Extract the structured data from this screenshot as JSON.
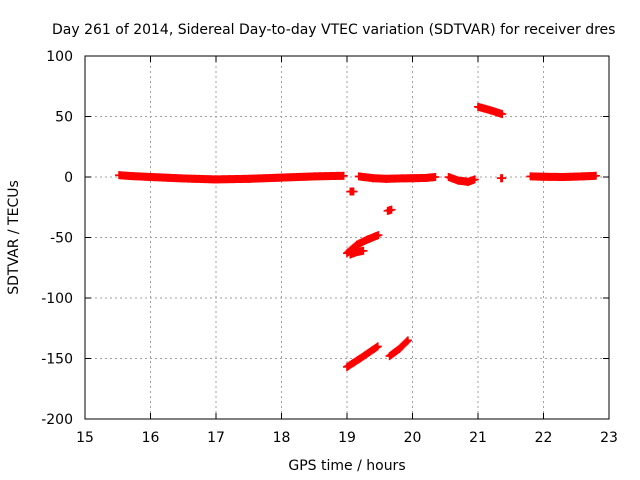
{
  "chart_data": {
    "type": "scatter",
    "title": "Day 261 of 2014, Sidereal Day-to-day VTEC variation (SDTVAR) for receiver dres",
    "xlabel": "GPS time / hours",
    "ylabel": "SDTVAR / TECUs",
    "xlim": [
      15,
      23
    ],
    "ylim": [
      -200,
      100
    ],
    "xticks": [
      15,
      16,
      17,
      18,
      19,
      20,
      21,
      22,
      23
    ],
    "yticks": [
      -200,
      -150,
      -100,
      -50,
      0,
      50,
      100
    ],
    "grid": true,
    "legend": "none",
    "series": [
      {
        "name": "SDTVAR",
        "color": "#ff0000",
        "marker": "plus",
        "segments": [
          {
            "x": [
              15.52,
              15.7,
              16.0,
              16.5,
              17.0,
              17.5,
              18.0,
              18.5,
              18.95
            ],
            "y": [
              1.5,
              0.8,
              0,
              -1.2,
              -2,
              -1.5,
              -0.5,
              0.5,
              1.0
            ]
          },
          {
            "x": [
              19.05,
              19.1
            ],
            "y": [
              -12,
              -12
            ]
          },
          {
            "x": [
              19.18,
              19.4,
              19.6,
              19.8,
              20.0,
              20.2,
              20.35
            ],
            "y": [
              0.5,
              -1,
              -1.5,
              -1.2,
              -1,
              -0.8,
              0
            ]
          },
          {
            "x": [
              19.62,
              19.68
            ],
            "y": [
              -28,
              -27
            ]
          },
          {
            "x": [
              19.0,
              19.15,
              19.3,
              19.48
            ],
            "y": [
              -63,
              -56,
              -52,
              -48
            ]
          },
          {
            "x": [
              19.05,
              19.15,
              19.25
            ],
            "y": [
              -64,
              -62,
              -61
            ]
          },
          {
            "x": [
              20.55,
              20.7,
              20.85,
              20.95
            ],
            "y": [
              0,
              -3,
              -4,
              -2
            ]
          },
          {
            "x": [
              21.0,
              21.2,
              21.37
            ],
            "y": [
              58,
              55,
              52
            ]
          },
          {
            "x": [
              21.35,
              21.37
            ],
            "y": [
              -1,
              -1
            ]
          },
          {
            "x": [
              21.8,
              22.0,
              22.3,
              22.6,
              22.8
            ],
            "y": [
              0.5,
              0.2,
              0,
              0.5,
              1.0
            ]
          },
          {
            "x": [
              19.0,
              19.2,
              19.47
            ],
            "y": [
              -157,
              -150,
              -140
            ]
          },
          {
            "x": [
              19.65,
              19.8,
              19.93
            ],
            "y": [
              -148,
              -142,
              -135
            ]
          }
        ]
      }
    ]
  }
}
